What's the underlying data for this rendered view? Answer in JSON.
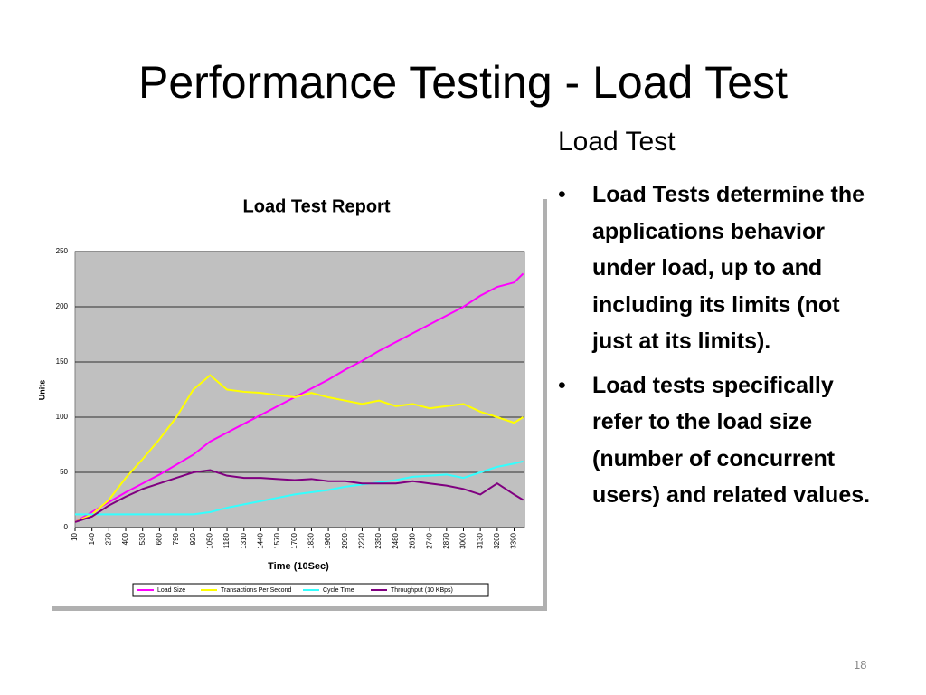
{
  "slide": {
    "title": "Performance Testing - Load Test",
    "heading": "Load Test",
    "bullets": [
      "Load Tests determine the applications behavior under load, up to and including its limits (not just at its limits).",
      "Load tests specifically refer to the load size (number of concurrent users) and related values."
    ],
    "page_number": "18"
  },
  "chart_data": {
    "type": "line",
    "title": "Load Test Report",
    "x_label": "Time (10Sec)",
    "y_label": "Units",
    "x": [
      10,
      140,
      270,
      400,
      530,
      660,
      790,
      920,
      1050,
      1180,
      1310,
      1440,
      1570,
      1700,
      1830,
      1960,
      2090,
      2220,
      2350,
      2480,
      2610,
      2740,
      2870,
      3000,
      3130,
      3260,
      3390,
      3460
    ],
    "xlim": [
      10,
      3470
    ],
    "xticks": [
      10,
      140,
      270,
      400,
      530,
      660,
      790,
      920,
      1050,
      1180,
      1310,
      1440,
      1570,
      1700,
      1830,
      1960,
      2090,
      2220,
      2350,
      2480,
      2610,
      2740,
      2870,
      3000,
      3130,
      3260,
      3390
    ],
    "ylim": [
      0,
      250
    ],
    "yticks": [
      0,
      50,
      100,
      150,
      200,
      250
    ],
    "grid": true,
    "legend": "bottom",
    "series": [
      {
        "name": "Load Size",
        "color": "#ff00ff",
        "values": [
          5,
          14,
          23,
          32,
          40,
          48,
          57,
          66,
          78,
          86,
          94,
          102,
          110,
          118,
          126,
          134,
          143,
          151,
          160,
          168,
          176,
          184,
          192,
          200,
          210,
          218,
          222,
          230
        ]
      },
      {
        "name": "Transactions Per Second",
        "color": "#ffff00",
        "values": [
          5,
          12,
          25,
          45,
          62,
          80,
          100,
          125,
          138,
          125,
          123,
          122,
          120,
          118,
          122,
          118,
          115,
          112,
          115,
          110,
          112,
          108,
          110,
          112,
          105,
          100,
          95,
          100
        ]
      },
      {
        "name": "Cycle Time",
        "color": "#33ffff",
        "values": [
          12,
          12,
          12,
          12,
          12,
          12,
          12,
          12,
          14,
          18,
          21,
          24,
          27,
          30,
          32,
          34,
          37,
          39,
          41,
          43,
          46,
          47,
          48,
          45,
          50,
          55,
          58,
          60
        ]
      },
      {
        "name": "Throughput (10 KBps)",
        "color": "#800080",
        "values": [
          5,
          10,
          20,
          28,
          35,
          40,
          45,
          50,
          52,
          47,
          45,
          45,
          44,
          43,
          44,
          42,
          42,
          40,
          40,
          40,
          42,
          40,
          38,
          35,
          30,
          40,
          30,
          25
        ]
      }
    ]
  }
}
